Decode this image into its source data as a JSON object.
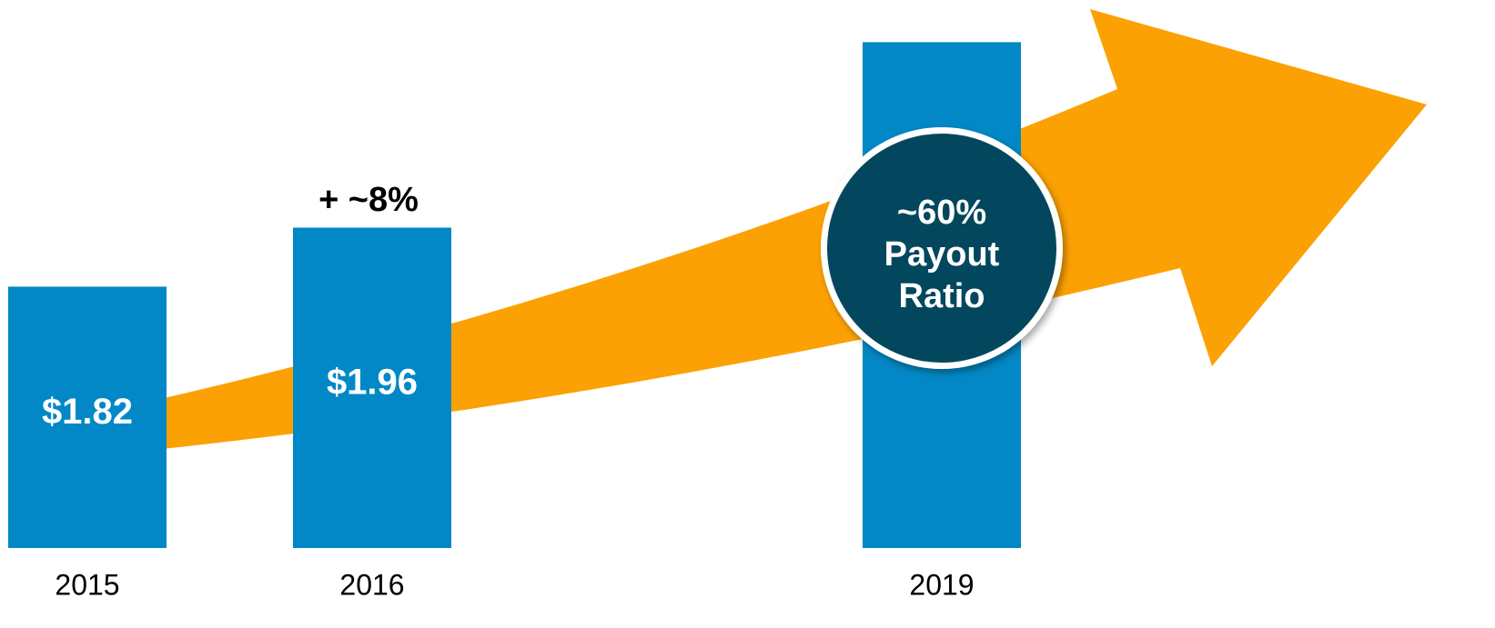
{
  "chart_data": {
    "type": "bar",
    "categories": [
      "2015",
      "2016",
      "2019"
    ],
    "values": [
      1.82,
      1.96,
      2.4
    ],
    "value_labels": [
      "$1.82",
      "$1.96",
      null
    ],
    "color": "#0288c6",
    "ylim": [
      1.2,
      2.5
    ],
    "growth_label": "+ ~8%",
    "circle_label": [
      "~60%",
      "Payout",
      "Ratio"
    ]
  }
}
